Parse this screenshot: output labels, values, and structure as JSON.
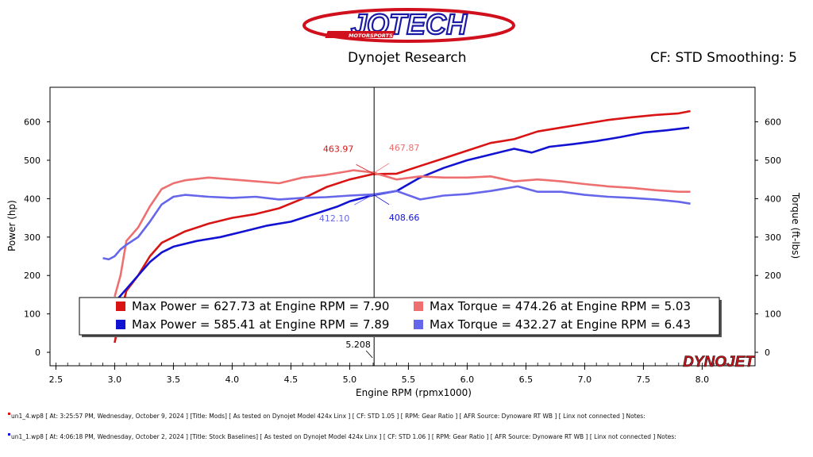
{
  "header": {
    "logo_text": "JOTECH",
    "logo_subtext": "MOTORSPORTS",
    "title": "Dynojet Research",
    "settings": "CF: STD Smoothing: 5"
  },
  "brand": {
    "watermark": "DYNOJET",
    "accent": "#d0101c"
  },
  "footer": {
    "runs": [
      {
        "color": "#e01010",
        "text": "un1_4.wp8 [ At: 3:25:57 PM, Wednesday, October 9, 2024 ]  [Title: Mods]  [ As tested on Dynojet Model 424x Linx ] [ CF: STD 1.05 ] [ RPM: Gear Ratio ] [ AFR Source: Dynoware RT WB ] [ Linx not connected ] Notes:"
      },
      {
        "color": "#1010e0",
        "text": "un1_1.wp8 [ At: 4:06:18 PM, Wednesday, October 2, 2024 ] [Title: Stock Baselines]  [ As tested on Dynojet Model 424x Linx ] [ CF: STD 1.06 ] [ RPM: Gear Ratio ] [ AFR Source: Dynoware RT WB ] [ Linx not connected ] Notes:"
      }
    ]
  },
  "chart_data": {
    "type": "line",
    "xlabel": "Engine RPM (rpmx1000)",
    "ylabel": "Power (hp)",
    "y2label": "Torque (ft-lbs)",
    "xlim": [
      2.45,
      8.45
    ],
    "ylim": [
      -35,
      690
    ],
    "xticks": [
      2.5,
      3.0,
      3.5,
      4.0,
      4.5,
      5.0,
      5.5,
      6.0,
      6.5,
      7.0,
      7.5,
      8.0
    ],
    "yticks": [
      0,
      100,
      200,
      300,
      400,
      500,
      600
    ],
    "grid": true,
    "cursor": {
      "x": 5.208,
      "label": "5.208"
    },
    "series": [
      {
        "name": "Power - Mods",
        "axis": "power",
        "color": "#d81414",
        "x": [
          3.0,
          3.05,
          3.1,
          3.2,
          3.3,
          3.4,
          3.5,
          3.6,
          3.8,
          4.0,
          4.2,
          4.4,
          4.6,
          4.8,
          5.0,
          5.2,
          5.4,
          5.6,
          5.8,
          6.0,
          6.2,
          6.4,
          6.6,
          6.8,
          7.0,
          7.2,
          7.4,
          7.6,
          7.8,
          7.9
        ],
        "values": [
          25,
          100,
          160,
          200,
          250,
          285,
          300,
          315,
          335,
          350,
          360,
          375,
          400,
          430,
          450,
          464,
          465,
          485,
          505,
          525,
          545,
          555,
          575,
          585,
          595,
          605,
          612,
          618,
          622,
          628
        ]
      },
      {
        "name": "Power - Stock Baselines",
        "axis": "power",
        "color": "#1212d2",
        "x": [
          3.0,
          3.1,
          3.2,
          3.3,
          3.4,
          3.5,
          3.7,
          3.9,
          4.1,
          4.3,
          4.5,
          4.7,
          4.9,
          5.0,
          5.2,
          5.4,
          5.6,
          5.8,
          6.0,
          6.2,
          6.4,
          6.55,
          6.7,
          6.9,
          7.1,
          7.3,
          7.5,
          7.7,
          7.89
        ],
        "values": [
          130,
          165,
          200,
          235,
          260,
          275,
          290,
          300,
          315,
          330,
          340,
          360,
          380,
          393,
          409,
          420,
          455,
          480,
          500,
          515,
          530,
          520,
          535,
          542,
          550,
          560,
          572,
          578,
          585
        ]
      },
      {
        "name": "Torque - Mods",
        "axis": "torque",
        "color": "#ee6f6f",
        "x": [
          3.0,
          3.05,
          3.1,
          3.2,
          3.3,
          3.4,
          3.5,
          3.6,
          3.8,
          4.0,
          4.2,
          4.4,
          4.6,
          4.8,
          5.0,
          5.03,
          5.2,
          5.4,
          5.6,
          5.8,
          6.0,
          6.2,
          6.4,
          6.6,
          6.8,
          7.0,
          7.2,
          7.4,
          7.6,
          7.8,
          7.9
        ],
        "values": [
          145,
          200,
          290,
          325,
          380,
          425,
          440,
          448,
          455,
          450,
          445,
          440,
          455,
          462,
          472,
          474,
          468,
          450,
          458,
          455,
          455,
          458,
          445,
          450,
          445,
          438,
          432,
          428,
          422,
          418,
          418
        ]
      },
      {
        "name": "Torque - Stock Baselines",
        "axis": "torque",
        "color": "#6666ea",
        "x": [
          2.9,
          2.95,
          3.0,
          3.05,
          3.1,
          3.2,
          3.3,
          3.4,
          3.5,
          3.6,
          3.8,
          4.0,
          4.2,
          4.4,
          4.6,
          4.8,
          5.0,
          5.2,
          5.4,
          5.6,
          5.8,
          6.0,
          6.2,
          6.43,
          6.6,
          6.8,
          7.0,
          7.2,
          7.4,
          7.6,
          7.8,
          7.9
        ],
        "values": [
          245,
          242,
          250,
          268,
          280,
          300,
          340,
          385,
          405,
          410,
          405,
          402,
          405,
          398,
          402,
          404,
          408,
          411,
          420,
          398,
          408,
          412,
          420,
          432,
          418,
          418,
          410,
          405,
          402,
          398,
          392,
          387
        ]
      }
    ],
    "cursor_values": [
      {
        "value": "463.97",
        "series": 0,
        "color": "#d81414"
      },
      {
        "value": "467.87",
        "series": 2,
        "color": "#ee6f6f"
      },
      {
        "value": "412.10",
        "series": 3,
        "color": "#6666ea"
      },
      {
        "value": "408.66",
        "series": 1,
        "color": "#1212d2"
      }
    ],
    "legend": [
      {
        "text": "Max Power = 627.73 at Engine RPM = 7.90",
        "color": "#d81414"
      },
      {
        "text": "Max Torque = 474.26 at Engine RPM = 5.03",
        "color": "#ee6f6f"
      },
      {
        "text": "Max Power = 585.41 at Engine RPM = 7.89",
        "color": "#1212d2"
      },
      {
        "text": "Max Torque = 432.27 at Engine RPM = 6.43",
        "color": "#6666ea"
      }
    ]
  }
}
